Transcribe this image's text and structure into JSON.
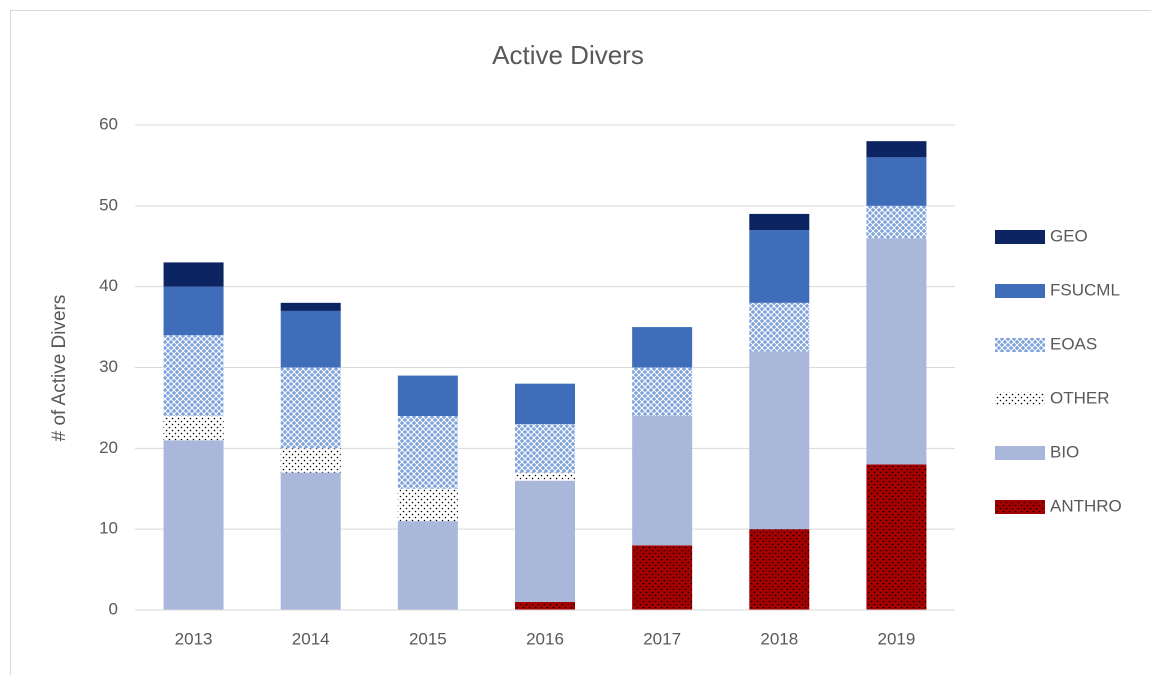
{
  "chart_data": {
    "type": "stacked_bar",
    "title": "Active Divers",
    "y_label": "# of Active Divers",
    "categories": [
      "2013",
      "2014",
      "2015",
      "2016",
      "2017",
      "2018",
      "2019"
    ],
    "series": [
      {
        "name": "ANTHRO",
        "color": "#a50000",
        "pattern": "dots",
        "values": [
          0,
          0,
          0,
          1,
          8,
          10,
          18
        ]
      },
      {
        "name": "BIO",
        "color": "#a9b7db",
        "values": [
          21,
          17,
          11,
          15,
          16,
          22,
          28
        ]
      },
      {
        "name": "OTHER",
        "color": "#ffffff",
        "pattern": "dots",
        "values": [
          3,
          3,
          4,
          1,
          0,
          0,
          0
        ]
      },
      {
        "name": "EOAS",
        "color": "#7fa4dc",
        "pattern": "crosshatch",
        "values": [
          10,
          10,
          9,
          6,
          6,
          6,
          4
        ]
      },
      {
        "name": "FSUCML",
        "color": "#3f6dba",
        "values": [
          6,
          7,
          5,
          5,
          5,
          9,
          6
        ]
      },
      {
        "name": "GEO",
        "color": "#0c2461",
        "values": [
          3,
          1,
          0,
          0,
          0,
          2,
          2
        ]
      }
    ],
    "ylim": [
      0,
      60
    ],
    "yticks": [
      0,
      10,
      20,
      30,
      40,
      50,
      60
    ],
    "grid": true,
    "legend": "right"
  }
}
